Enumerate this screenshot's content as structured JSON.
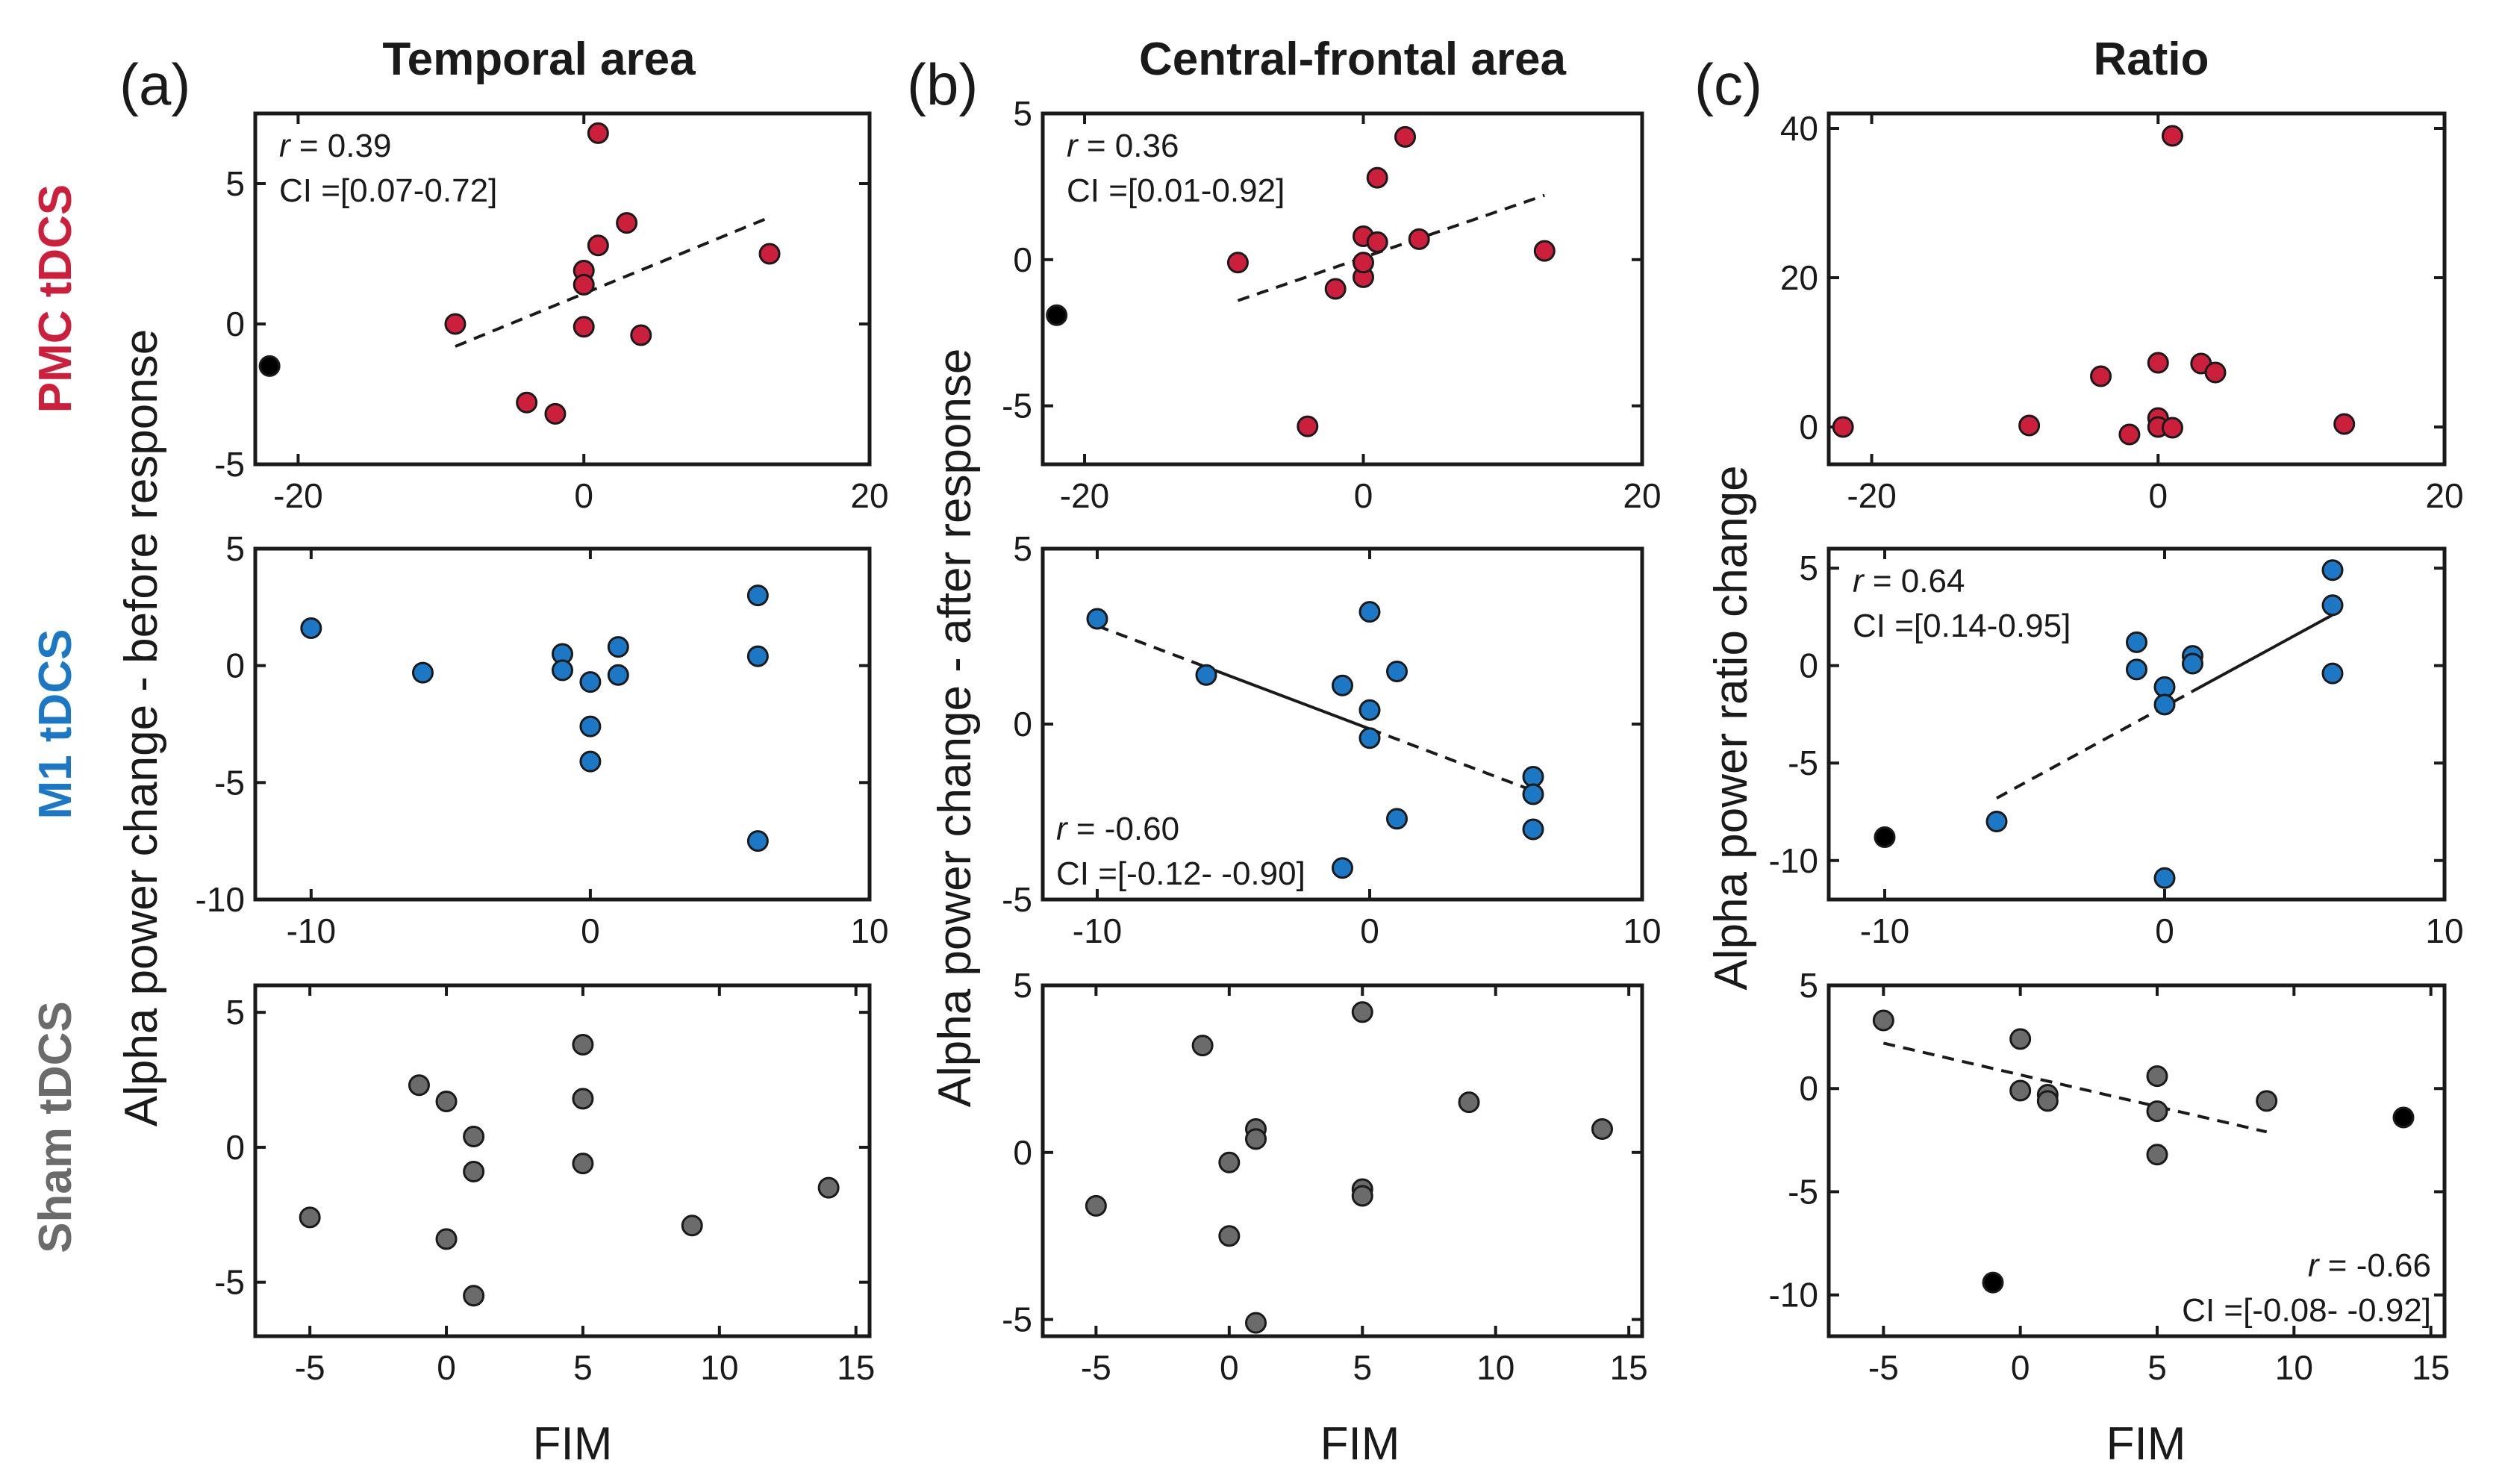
{
  "colors": {
    "pmc": "#cc1f3b",
    "m1": "#1c77c4",
    "sham": "#6b6b6b",
    "outlier": "#000000"
  },
  "columns": [
    {
      "letter": "(a)",
      "title": "Temporal area"
    },
    {
      "letter": "(b)",
      "title": "Central-frontal area"
    },
    {
      "letter": "(c)",
      "title": "Ratio"
    }
  ],
  "rows": [
    {
      "label": "PMC tDCS",
      "color": "#cc1f3b"
    },
    {
      "label": "M1 tDCS",
      "color": "#1c77c4"
    },
    {
      "label": "Sham tDCS",
      "color": "#6b6b6b"
    }
  ],
  "ylabels": [
    "Alpha power change - before response",
    "Alpha power change - after response",
    "Alpha power ratio change"
  ],
  "xlabel": "FIM",
  "chart_data": [
    {
      "id": "a1",
      "type": "scatter",
      "xlim": [
        -23,
        20
      ],
      "ylim": [
        -5,
        7.5
      ],
      "xticks": [
        -20,
        0,
        20
      ],
      "yticks": [
        -5,
        0,
        5
      ],
      "color": "#cc1f3b",
      "points": [
        [
          -9,
          0
        ],
        [
          -4,
          -2.8
        ],
        [
          -2,
          -3.2
        ],
        [
          0,
          1.9
        ],
        [
          0,
          1.4
        ],
        [
          0,
          -0.1
        ],
        [
          1,
          6.8
        ],
        [
          1,
          2.8
        ],
        [
          3,
          3.6
        ],
        [
          4,
          -0.4
        ],
        [
          13,
          2.5
        ]
      ],
      "outliers": [
        [
          -22,
          -1.5
        ]
      ],
      "fit": {
        "style": "dashed",
        "from": [
          -9,
          -0.8
        ],
        "to": [
          13,
          3.8
        ]
      },
      "stats": [
        "r = 0.39",
        "CI =[0.07-0.72]"
      ],
      "stat_pos": "top-left"
    },
    {
      "id": "b1",
      "type": "scatter",
      "xlim": [
        -23,
        20
      ],
      "ylim": [
        -7,
        5
      ],
      "xticks": [
        -20,
        0,
        20
      ],
      "yticks": [
        -5,
        0,
        5
      ],
      "color": "#cc1f3b",
      "points": [
        [
          -9,
          -0.1
        ],
        [
          -4,
          -5.7
        ],
        [
          -2,
          -1.0
        ],
        [
          0,
          0.8
        ],
        [
          0,
          -0.6
        ],
        [
          0,
          -0.1
        ],
        [
          1,
          2.8
        ],
        [
          1,
          0.6
        ],
        [
          3,
          4.2
        ],
        [
          4,
          0.7
        ],
        [
          13,
          0.3
        ]
      ],
      "outliers": [
        [
          -22,
          -1.9
        ]
      ],
      "fit": {
        "style": "dashed",
        "from": [
          -9,
          -1.4
        ],
        "to": [
          13,
          2.2
        ]
      },
      "stats": [
        "r = 0.36",
        "CI =[0.01-0.92]"
      ],
      "stat_pos": "top-left"
    },
    {
      "id": "c1",
      "type": "scatter",
      "xlim": [
        -23,
        20
      ],
      "ylim": [
        -5,
        42
      ],
      "xticks": [
        -20,
        0,
        20
      ],
      "yticks": [
        0,
        20,
        40
      ],
      "color": "#cc1f3b",
      "points": [
        [
          -22,
          0
        ],
        [
          -9,
          0.2
        ],
        [
          -4,
          6.8
        ],
        [
          -2,
          -1
        ],
        [
          0,
          8.6
        ],
        [
          0,
          1.2
        ],
        [
          0,
          0
        ],
        [
          1,
          39
        ],
        [
          1,
          -0.1
        ],
        [
          3,
          8.5
        ],
        [
          4,
          7.3
        ],
        [
          13,
          0.4
        ]
      ],
      "outliers": [],
      "fit": null,
      "stats": [],
      "stat_pos": ""
    },
    {
      "id": "a2",
      "type": "scatter",
      "xlim": [
        -12,
        10
      ],
      "ylim": [
        -10,
        5
      ],
      "xticks": [
        -10,
        0,
        10
      ],
      "yticks": [
        -10,
        -5,
        0,
        5
      ],
      "color": "#1c77c4",
      "points": [
        [
          -10,
          1.6
        ],
        [
          -6,
          -0.3
        ],
        [
          -1,
          0.5
        ],
        [
          -1,
          -0.2
        ],
        [
          0,
          -0.7
        ],
        [
          0,
          -2.6
        ],
        [
          0,
          -4.1
        ],
        [
          1,
          0.8
        ],
        [
          1,
          -0.4
        ],
        [
          6,
          3.0
        ],
        [
          6,
          0.4
        ],
        [
          6,
          -7.5
        ]
      ],
      "outliers": [],
      "fit": null,
      "stats": [],
      "stat_pos": ""
    },
    {
      "id": "b2",
      "type": "scatter",
      "xlim": [
        -12,
        10
      ],
      "ylim": [
        -5,
        5
      ],
      "xticks": [
        -10,
        0,
        10
      ],
      "yticks": [
        -5,
        0,
        5
      ],
      "color": "#1c77c4",
      "points": [
        [
          -10,
          3.0
        ],
        [
          -6,
          1.4
        ],
        [
          -1,
          1.1
        ],
        [
          0,
          3.2
        ],
        [
          0,
          0.4
        ],
        [
          0,
          -0.4
        ],
        [
          1,
          1.5
        ],
        [
          1,
          -2.7
        ],
        [
          -1,
          -4.1
        ],
        [
          6,
          -1.5
        ],
        [
          6,
          -2.0
        ],
        [
          6,
          -3.0
        ]
      ],
      "outliers": [],
      "fit": {
        "style": "mixed",
        "from": [
          -10,
          2.8
        ],
        "to": [
          6,
          -1.9
        ],
        "solid": [
          -6,
          0
        ]
      },
      "stats": [
        "r = -0.60",
        "CI =[-0.12- -0.90]"
      ],
      "stat_pos": "bottom-left"
    },
    {
      "id": "c2",
      "type": "scatter",
      "xlim": [
        -12,
        10
      ],
      "ylim": [
        -12,
        6
      ],
      "xticks": [
        -10,
        0,
        10
      ],
      "yticks": [
        -10,
        -5,
        0,
        5
      ],
      "color": "#1c77c4",
      "points": [
        [
          -6,
          -8.0
        ],
        [
          -1,
          1.2
        ],
        [
          -1,
          -0.2
        ],
        [
          0,
          -1.1
        ],
        [
          0,
          -2.0
        ],
        [
          0,
          -10.9
        ],
        [
          1,
          0.5
        ],
        [
          1,
          0.1
        ],
        [
          6,
          4.9
        ],
        [
          6,
          3.1
        ],
        [
          6,
          -0.4
        ]
      ],
      "outliers": [
        [
          -10,
          -8.8
        ]
      ],
      "fit": {
        "style": "mixed",
        "from": [
          -6,
          -6.8
        ],
        "to": [
          6,
          2.6
        ],
        "solid": [
          1,
          6
        ]
      },
      "stats": [
        "r = 0.64",
        "CI =[0.14-0.95]"
      ],
      "stat_pos": "top-left"
    },
    {
      "id": "a3",
      "type": "scatter",
      "xlim": [
        -7,
        15.5
      ],
      "ylim": [
        -7,
        6
      ],
      "xticks": [
        -5,
        0,
        5,
        10,
        15
      ],
      "yticks": [
        -5,
        0,
        5
      ],
      "color": "#6b6b6b",
      "points": [
        [
          -5,
          -2.6
        ],
        [
          -1,
          2.3
        ],
        [
          0,
          1.7
        ],
        [
          0,
          -3.4
        ],
        [
          1,
          0.4
        ],
        [
          1,
          -0.9
        ],
        [
          1,
          -5.5
        ],
        [
          5,
          3.8
        ],
        [
          5,
          1.8
        ],
        [
          5,
          -0.6
        ],
        [
          9,
          -2.9
        ],
        [
          14,
          -1.5
        ]
      ],
      "outliers": [],
      "fit": null,
      "stats": [],
      "stat_pos": ""
    },
    {
      "id": "b3",
      "type": "scatter",
      "xlim": [
        -7,
        15.5
      ],
      "ylim": [
        -5.5,
        5
      ],
      "xticks": [
        -5,
        0,
        5,
        10,
        15
      ],
      "yticks": [
        -5,
        0,
        5
      ],
      "color": "#6b6b6b",
      "points": [
        [
          -5,
          -1.6
        ],
        [
          -1,
          3.2
        ],
        [
          0,
          -0.3
        ],
        [
          0,
          -2.5
        ],
        [
          1,
          0.7
        ],
        [
          1,
          0.4
        ],
        [
          1,
          -5.1
        ],
        [
          5,
          4.2
        ],
        [
          5,
          -1.1
        ],
        [
          5,
          -1.3
        ],
        [
          9,
          1.5
        ],
        [
          14,
          0.7
        ]
      ],
      "outliers": [],
      "fit": null,
      "stats": [],
      "stat_pos": ""
    },
    {
      "id": "c3",
      "type": "scatter",
      "xlim": [
        -7,
        15.5
      ],
      "ylim": [
        -12,
        5
      ],
      "xticks": [
        -5,
        0,
        5,
        10,
        15
      ],
      "yticks": [
        -10,
        -5,
        0,
        5
      ],
      "color": "#6b6b6b",
      "points": [
        [
          -5,
          3.3
        ],
        [
          0,
          2.4
        ],
        [
          0,
          -0.1
        ],
        [
          1,
          -0.3
        ],
        [
          1,
          -0.6
        ],
        [
          5,
          0.6
        ],
        [
          5,
          -1.1
        ],
        [
          5,
          -3.2
        ],
        [
          9,
          -0.6
        ]
      ],
      "outliers": [
        [
          14,
          -1.4
        ],
        [
          -1,
          -9.4
        ]
      ],
      "fit": {
        "style": "dashed",
        "from": [
          -5,
          2.2
        ],
        "to": [
          9,
          -2.1
        ]
      },
      "stats": [
        "r = -0.66",
        "CI =[-0.08- -0.92]"
      ],
      "stat_pos": "bottom-right"
    }
  ]
}
